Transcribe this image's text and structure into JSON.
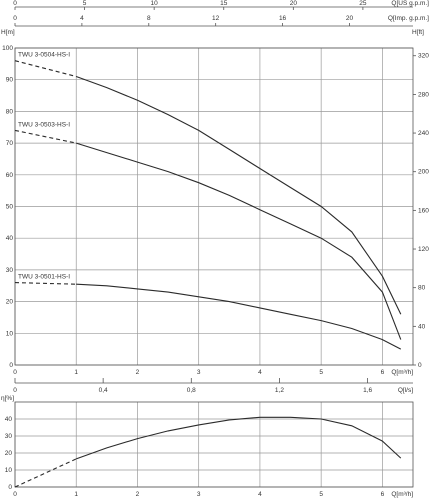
{
  "chart_data": [
    {
      "type": "line",
      "title": "",
      "xlabel": "Q[m³/h]",
      "x_ticks": [
        0,
        1,
        2,
        3,
        4,
        5,
        6
      ],
      "xlim": [
        0,
        6.5
      ],
      "ylabel_left": "H[m]",
      "ylim_left": [
        0,
        100
      ],
      "y_ticks_left": [
        0,
        10,
        20,
        30,
        40,
        50,
        60,
        70,
        80,
        90,
        100
      ],
      "ylabel_right": "H[ft]",
      "ylim_right": [
        0,
        328
      ],
      "y_ticks_right": [
        0,
        40,
        80,
        120,
        160,
        200,
        240,
        280,
        320
      ],
      "top_axis_us": {
        "label": "Q[US g.p.m.]",
        "ticks": [
          0,
          5,
          10,
          15,
          20,
          25
        ]
      },
      "top_axis_imp": {
        "label": "Q[Imp. g.p.m.]",
        "ticks": [
          0,
          4,
          8,
          12,
          16,
          20
        ]
      },
      "grid": true,
      "series": [
        {
          "name": "TWU 3-0504-HS-I",
          "dashed_x": [
            0,
            1
          ],
          "dashed_y": [
            96,
            91
          ],
          "x": [
            1,
            1.5,
            2,
            2.5,
            3,
            3.5,
            4,
            4.5,
            5,
            5.5,
            6,
            6.3
          ],
          "y": [
            91,
            87.5,
            83.5,
            79,
            74,
            68,
            62,
            56,
            50,
            42,
            28,
            16
          ]
        },
        {
          "name": "TWU 3-0503-HS-I",
          "dashed_x": [
            0,
            1
          ],
          "dashed_y": [
            74,
            70
          ],
          "x": [
            1,
            1.5,
            2,
            2.5,
            3,
            3.5,
            4,
            4.5,
            5,
            5.5,
            6,
            6.3
          ],
          "y": [
            70,
            67,
            64,
            61,
            57.5,
            53.5,
            49,
            44.5,
            40,
            34,
            23,
            8
          ]
        },
        {
          "name": "TWU 3-0501-HS-I",
          "dashed_x": [
            0,
            1
          ],
          "dashed_y": [
            26,
            25.5
          ],
          "x": [
            1,
            1.5,
            2,
            2.5,
            3,
            3.5,
            4,
            4.5,
            5,
            5.5,
            6,
            6.3
          ],
          "y": [
            25.5,
            25,
            24,
            23,
            21.5,
            20,
            18,
            16,
            14,
            11.5,
            8,
            5
          ]
        }
      ]
    },
    {
      "type": "line",
      "title": "",
      "xlabel": "Q[l/s]",
      "x_ticks": [
        "0",
        "0,4",
        "0,8",
        "1,2",
        "1,6"
      ],
      "x_tick_values": [
        0,
        0.4,
        0.8,
        1.2,
        1.6
      ],
      "xlim": [
        0,
        1.806
      ],
      "grid": false
    },
    {
      "type": "line",
      "title": "",
      "xlabel": "Q[m³/h]",
      "x_ticks": [
        0,
        1,
        2,
        3,
        4,
        5,
        6
      ],
      "xlim": [
        0,
        6.5
      ],
      "ylabel": "η[%]",
      "ylim": [
        0,
        50
      ],
      "y_ticks": [
        0,
        10,
        20,
        30,
        40
      ],
      "grid": true,
      "series": [
        {
          "dashed_x": [
            0,
            1
          ],
          "dashed_y": [
            0,
            16.5
          ],
          "x": [
            1,
            1.5,
            2,
            2.5,
            3,
            3.5,
            4,
            4.5,
            5,
            5.5,
            6,
            6.3
          ],
          "y": [
            16.5,
            23,
            28.5,
            33,
            36.5,
            39.5,
            41,
            41,
            40,
            36,
            27,
            17
          ]
        }
      ]
    }
  ]
}
